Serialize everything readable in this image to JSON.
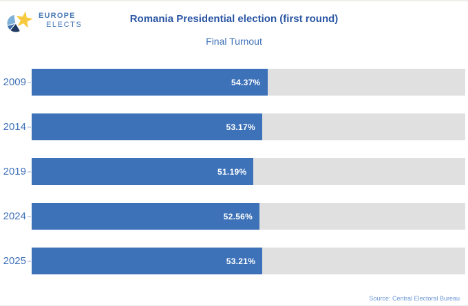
{
  "logo": {
    "line1": "EUROPE",
    "line2": "ELECTS"
  },
  "header": {
    "title": "Romania Presidential election (first round)",
    "subtitle": "Final Turnout"
  },
  "source": "Source: Central Electoral Bureau",
  "colors": {
    "bar": "#3d72b8",
    "track": "#e0e0e0",
    "title": "#2b56a4",
    "subtitle": "#3f72b8",
    "value_label": "#ffffff",
    "star_yellow": "#f6c93e",
    "globe_light_blue": "#7fb1d8",
    "globe_mid_blue": "#3e6ca8",
    "globe_navy": "#203a61"
  },
  "chart_data": {
    "type": "bar",
    "orientation": "horizontal",
    "title": "Romania Presidential election (first round)",
    "subtitle": "Final Turnout",
    "categories": [
      "2009",
      "2014",
      "2019",
      "2024",
      "2025"
    ],
    "values": [
      54.37,
      53.17,
      51.19,
      52.56,
      53.21
    ],
    "value_labels": [
      "54.37%",
      "53.17%",
      "51.19%",
      "52.56%",
      "53.21%"
    ],
    "xlim": [
      0,
      100
    ],
    "grid": false,
    "legend": false,
    "bar_color": "#3d72b8",
    "track_color": "#e0e0e0",
    "label_position": "inside-end"
  }
}
